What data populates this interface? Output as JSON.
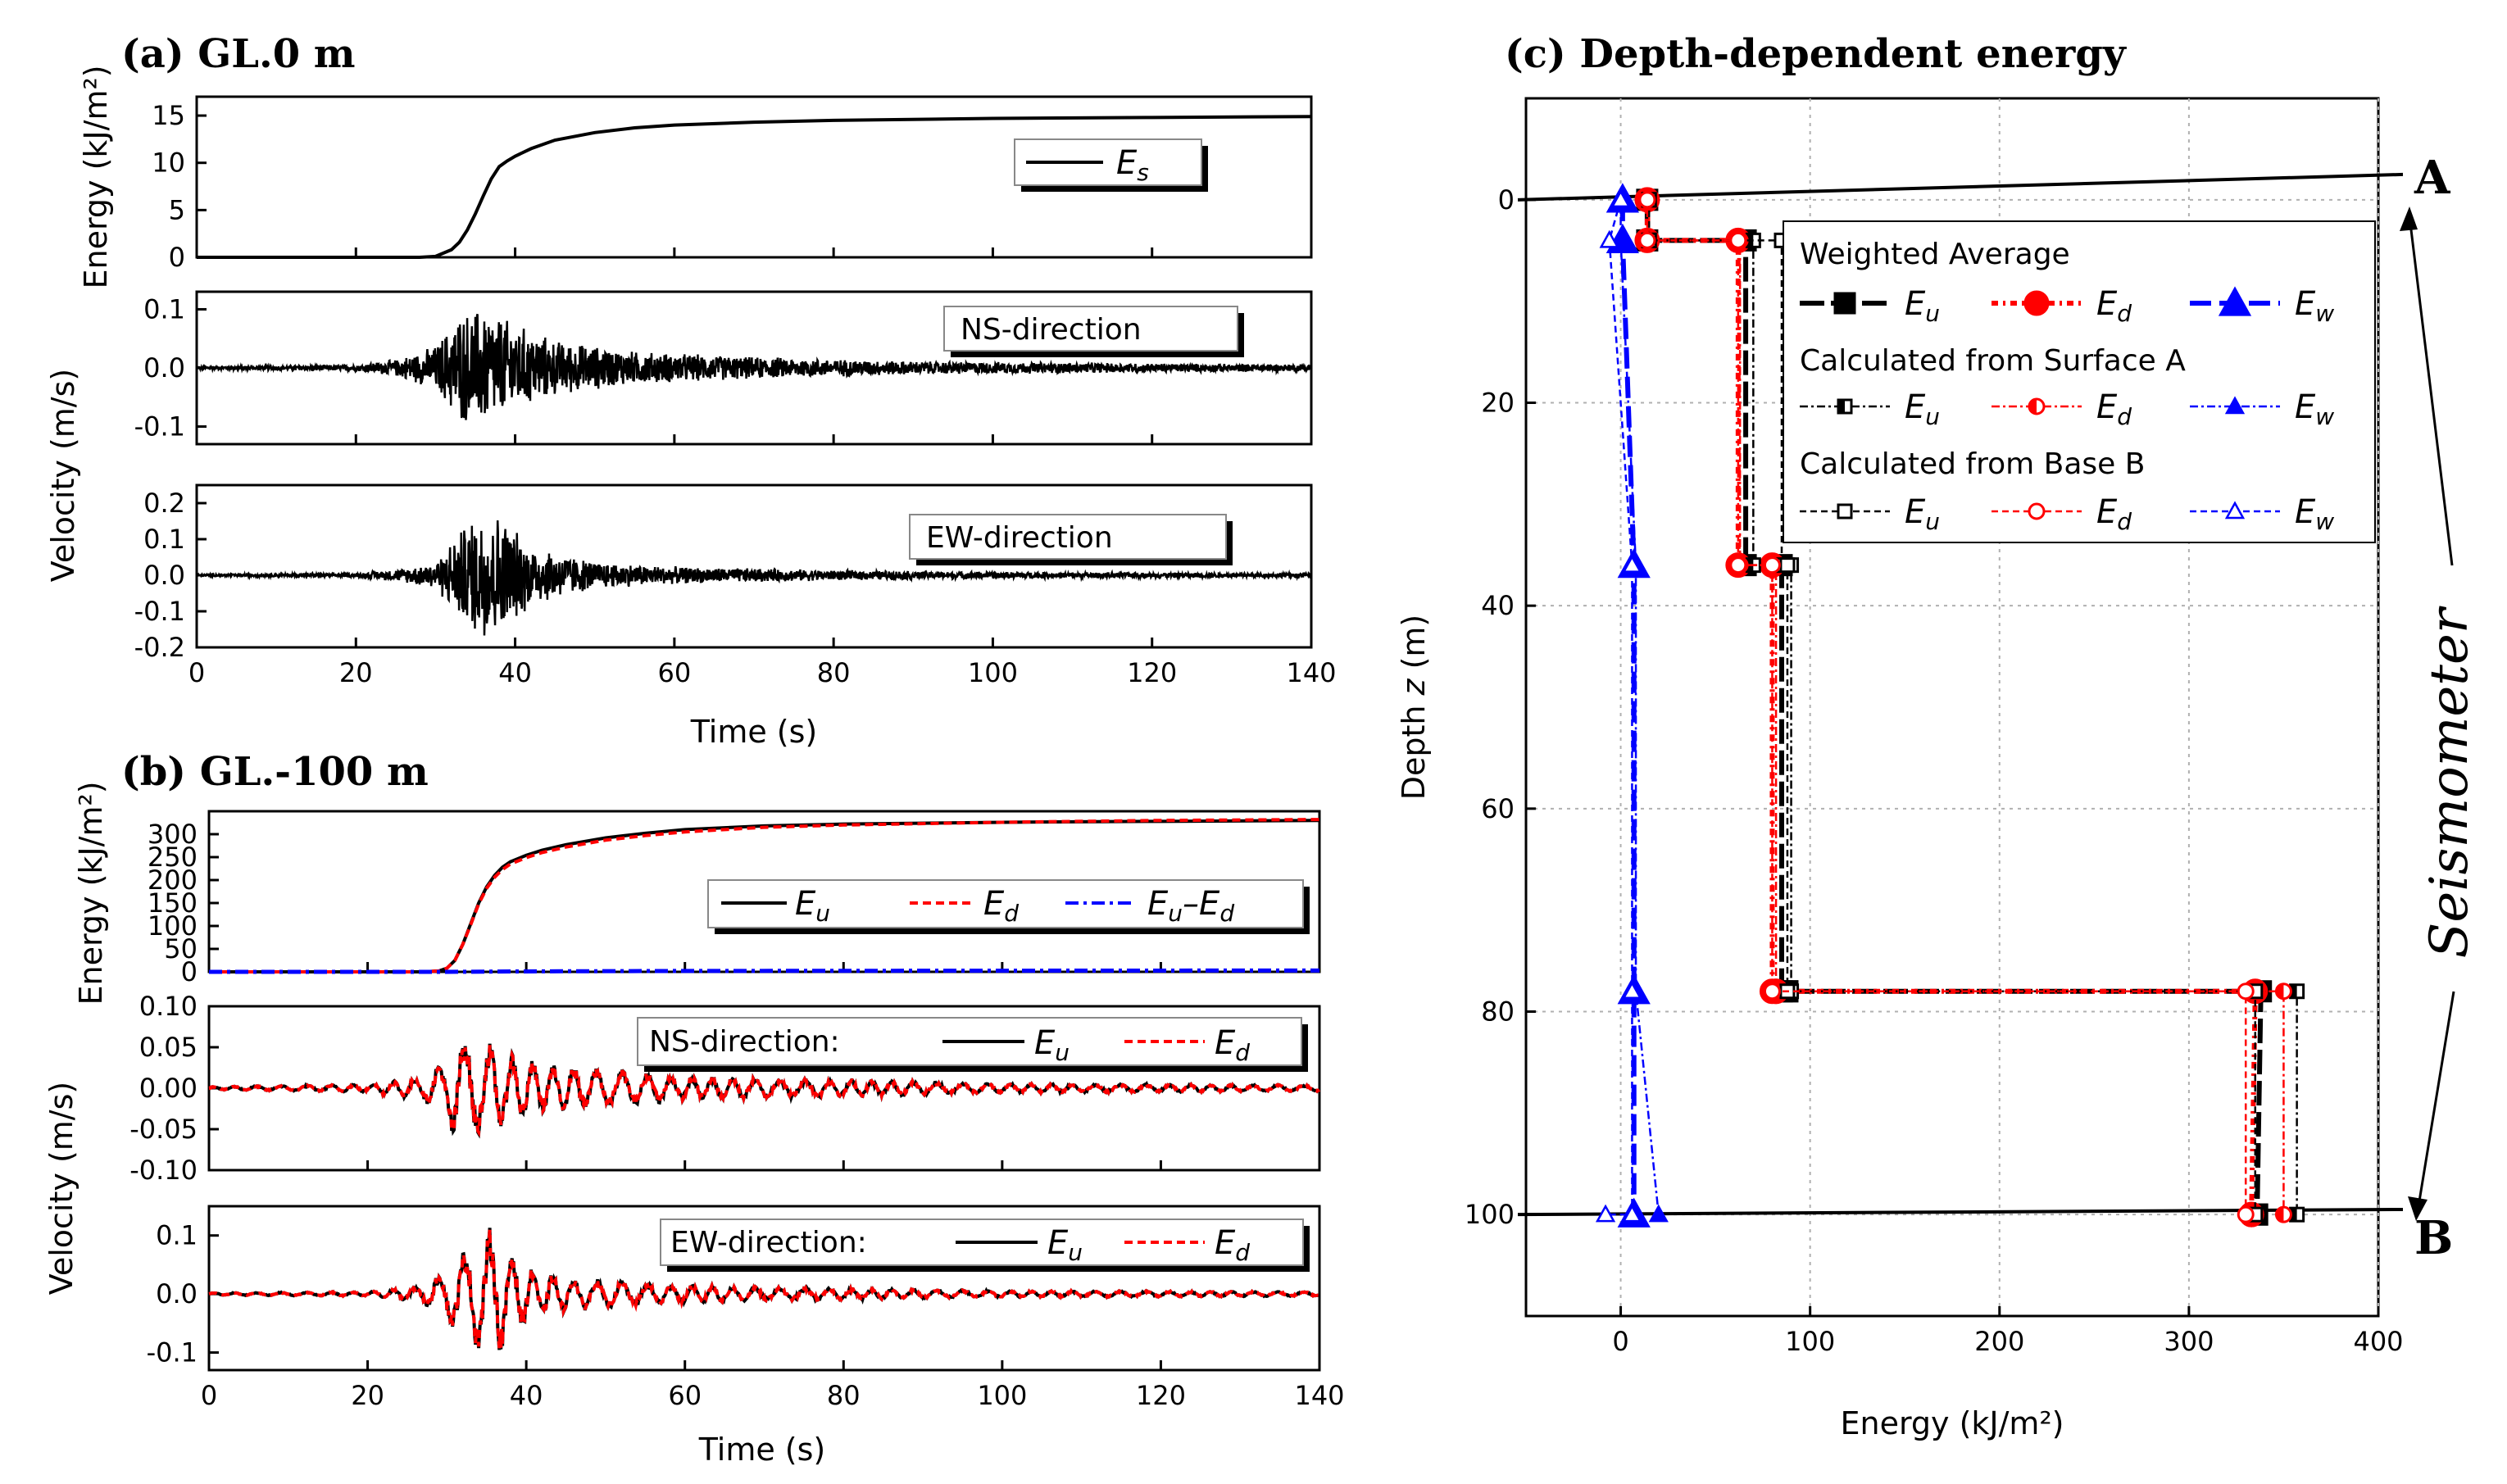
{
  "titles": {
    "a": "(a)  GL.0 m",
    "b": "(b)  GL.-100 m",
    "c": "(c)  Depth-dependent energy"
  },
  "panel_a": {
    "energy_ylabel": "Energy (kJ/m²)",
    "velocity_ylabel": "Velocity (m/s)",
    "xlabel": "Time (s)",
    "energy_legend": {
      "sym": "E",
      "sub": "s"
    },
    "ns_label": "NS-direction",
    "ew_label": "EW-direction"
  },
  "panel_b": {
    "energy_ylabel": "Energy (kJ/m²)",
    "velocity_ylabel": "Velocity (m/s)",
    "xlabel": "Time (s)",
    "ns_label": "NS-direction:",
    "ew_label": "EW-direction:",
    "legend_eu": {
      "sym": "E",
      "sub": "u"
    },
    "legend_ed": {
      "sym": "E",
      "sub": "d"
    },
    "legend_diff": {
      "sym1": "E",
      "sub1": "u",
      "minus": "–",
      "sym2": "E",
      "sub2": "d"
    }
  },
  "panel_c": {
    "xlabel": "Energy (kJ/m²)",
    "ylabel_prefix": "Depth ",
    "ylabel_var": "z",
    "ylabel_suffix": " (m)",
    "label_a": "A",
    "label_b": "B",
    "seismometer": "Seismometer",
    "legend": {
      "group1": "Weighted Average",
      "group2": "Calculated from Surface A",
      "group3": "Calculated from Base B",
      "eu": {
        "sym": "E",
        "sub": "u"
      },
      "ed": {
        "sym": "E",
        "sub": "d"
      },
      "ew": {
        "sym": "E",
        "sub": "w"
      }
    }
  },
  "colors": {
    "black": "#000000",
    "red": "#ff0000",
    "blue": "#0000ff",
    "grid": "#b0b0b0"
  },
  "chart_data": [
    {
      "id": "a-energy",
      "type": "line",
      "xlim": [
        0,
        140
      ],
      "ylim": [
        0,
        17
      ],
      "xticks": [
        0,
        20,
        40,
        60,
        80,
        100,
        120,
        140
      ],
      "yticks": [
        0,
        5,
        10,
        15
      ],
      "series": [
        {
          "name": "Es",
          "color": "#000000",
          "x": [
            0,
            28,
            30,
            32,
            33,
            34,
            35,
            36,
            37,
            38,
            39,
            40,
            42,
            45,
            50,
            55,
            60,
            70,
            80,
            100,
            120,
            140
          ],
          "y": [
            0,
            0,
            0.1,
            0.8,
            1.6,
            2.9,
            4.6,
            6.5,
            8.3,
            9.6,
            10.2,
            10.7,
            11.5,
            12.4,
            13.2,
            13.7,
            14.0,
            14.3,
            14.5,
            14.7,
            14.8,
            14.9
          ]
        }
      ]
    },
    {
      "id": "a-ns",
      "type": "line",
      "xlim": [
        0,
        140
      ],
      "ylim": [
        -0.13,
        0.13
      ],
      "xticks": [
        0,
        20,
        40,
        60,
        80,
        100,
        120,
        140
      ],
      "yticks": [
        -0.1,
        0.0,
        0.1
      ],
      "envelope": [
        [
          0,
          0.003
        ],
        [
          20,
          0.006
        ],
        [
          25,
          0.015
        ],
        [
          30,
          0.04
        ],
        [
          33,
          0.1
        ],
        [
          36,
          0.11
        ],
        [
          40,
          0.08
        ],
        [
          45,
          0.05
        ],
        [
          55,
          0.03
        ],
        [
          70,
          0.02
        ],
        [
          90,
          0.012
        ],
        [
          140,
          0.006
        ]
      ],
      "series": [
        {
          "name": "NS",
          "color": "#000000"
        }
      ]
    },
    {
      "id": "a-ew",
      "type": "line",
      "xlim": [
        0,
        140
      ],
      "ylim": [
        -0.2,
        0.25
      ],
      "xticks": [
        0,
        20,
        40,
        60,
        80,
        100,
        120,
        140
      ],
      "yticks": [
        -0.2,
        -0.1,
        0.0,
        0.1,
        0.2
      ],
      "envelope": [
        [
          0,
          0.003
        ],
        [
          20,
          0.006
        ],
        [
          26,
          0.02
        ],
        [
          30,
          0.04
        ],
        [
          33,
          0.13
        ],
        [
          36,
          0.2
        ],
        [
          38,
          0.18
        ],
        [
          42,
          0.09
        ],
        [
          50,
          0.04
        ],
        [
          60,
          0.025
        ],
        [
          80,
          0.015
        ],
        [
          100,
          0.01
        ],
        [
          140,
          0.006
        ]
      ],
      "series": [
        {
          "name": "EW",
          "color": "#000000"
        }
      ]
    },
    {
      "id": "b-energy",
      "type": "line",
      "xlim": [
        0,
        140
      ],
      "ylim": [
        0,
        350
      ],
      "xticks": [
        0,
        20,
        40,
        60,
        80,
        100,
        120,
        140
      ],
      "yticks": [
        0,
        50,
        100,
        150,
        200,
        250,
        300
      ],
      "series": [
        {
          "name": "Eu",
          "color": "#000000",
          "x": [
            0,
            27,
            29,
            30,
            31,
            32,
            33,
            34,
            35,
            36,
            37,
            38,
            40,
            42,
            45,
            50,
            55,
            60,
            70,
            80,
            100,
            120,
            140
          ],
          "y": [
            0,
            0,
            2,
            8,
            25,
            60,
            105,
            150,
            185,
            210,
            228,
            240,
            254,
            265,
            277,
            292,
            302,
            310,
            318,
            322,
            326,
            328,
            330
          ]
        },
        {
          "name": "Ed",
          "color": "#ff0000",
          "x": [
            0,
            27,
            29,
            30,
            31,
            32,
            33,
            34,
            35,
            36,
            37,
            38,
            40,
            42,
            45,
            50,
            55,
            60,
            70,
            80,
            100,
            120,
            140
          ],
          "y": [
            0,
            0,
            2,
            8,
            25,
            60,
            103,
            148,
            182,
            206,
            223,
            235,
            249,
            260,
            272,
            287,
            297,
            305,
            315,
            320,
            326,
            330,
            332
          ]
        },
        {
          "name": "Eu–Ed",
          "color": "#0000ff",
          "x": [
            0,
            30,
            40,
            60,
            100,
            140
          ],
          "y": [
            0,
            0,
            1,
            2,
            2.5,
            3
          ]
        }
      ]
    },
    {
      "id": "b-ns",
      "type": "line",
      "xlim": [
        0,
        140
      ],
      "ylim": [
        -0.1,
        0.1
      ],
      "xticks": [
        0,
        20,
        40,
        60,
        80,
        100,
        120,
        140
      ],
      "yticks": [
        -0.1,
        -0.05,
        0.0,
        0.05,
        0.1
      ],
      "envelope": [
        [
          0,
          0.002
        ],
        [
          20,
          0.005
        ],
        [
          27,
          0.015
        ],
        [
          30,
          0.04
        ],
        [
          31,
          0.075
        ],
        [
          34,
          0.06
        ],
        [
          37,
          0.05
        ],
        [
          42,
          0.03
        ],
        [
          50,
          0.025
        ],
        [
          60,
          0.015
        ],
        [
          75,
          0.012
        ],
        [
          100,
          0.006
        ],
        [
          140,
          0.004
        ]
      ],
      "series": [
        {
          "name": "Eu",
          "color": "#000000"
        },
        {
          "name": "Ed",
          "color": "#ff0000"
        }
      ]
    },
    {
      "id": "b-ew",
      "type": "line",
      "xlim": [
        0,
        140
      ],
      "ylim": [
        -0.13,
        0.15
      ],
      "xticks": [
        0,
        20,
        40,
        60,
        80,
        100,
        120,
        140
      ],
      "yticks": [
        -0.1,
        0.0,
        0.1
      ],
      "envelope": [
        [
          0,
          0.002
        ],
        [
          20,
          0.004
        ],
        [
          27,
          0.015
        ],
        [
          30,
          0.05
        ],
        [
          33,
          0.09
        ],
        [
          36,
          0.12
        ],
        [
          40,
          0.05
        ],
        [
          45,
          0.03
        ],
        [
          55,
          0.02
        ],
        [
          70,
          0.012
        ],
        [
          100,
          0.006
        ],
        [
          140,
          0.004
        ]
      ],
      "series": [
        {
          "name": "Eu",
          "color": "#000000"
        },
        {
          "name": "Ed",
          "color": "#ff0000"
        }
      ]
    },
    {
      "id": "c-depth",
      "type": "line",
      "xlim": [
        -50,
        400
      ],
      "ylim": [
        110,
        -10
      ],
      "xticks": [
        0,
        100,
        200,
        300,
        400
      ],
      "yticks": [
        0,
        20,
        40,
        60,
        80,
        100
      ],
      "series": [
        {
          "group": "Weighted Average",
          "name": "Eu",
          "color": "#000000",
          "marker": "square-filled",
          "x": [
            14,
            14,
            66,
            66,
            85,
            85,
            88,
            88,
            338,
            336,
            336
          ],
          "y": [
            0,
            4,
            4,
            36,
            36,
            78,
            78,
            78,
            78,
            100,
            100
          ]
        },
        {
          "group": "Weighted Average",
          "name": "Ed",
          "color": "#ff0000",
          "marker": "circle-filled",
          "x": [
            14,
            14,
            62,
            62,
            80,
            80,
            82,
            82,
            335,
            333,
            333
          ],
          "y": [
            0,
            4,
            4,
            36,
            36,
            78,
            78,
            78,
            78,
            100,
            100
          ]
        },
        {
          "group": "Weighted Average",
          "name": "Ew",
          "color": "#0000ff",
          "marker": "triangle-filled",
          "x": [
            1,
            1,
            7,
            7,
            7
          ],
          "y": [
            0,
            4,
            36,
            78,
            100
          ]
        },
        {
          "group": "Calculated from Surface A",
          "name": "Eu",
          "color": "#000000",
          "marker": "square-half",
          "x": [
            15,
            15,
            70,
            70,
            90,
            90,
            357,
            357
          ],
          "y": [
            0,
            4,
            4,
            36,
            36,
            78,
            78,
            100
          ]
        },
        {
          "group": "Calculated from Surface A",
          "name": "Ed",
          "color": "#ff0000",
          "marker": "circle-half",
          "x": [
            15,
            15,
            63,
            63,
            82,
            82,
            350,
            350
          ],
          "y": [
            0,
            4,
            4,
            36,
            36,
            78,
            78,
            100
          ]
        },
        {
          "group": "Calculated from Surface A",
          "name": "Ew",
          "color": "#0000ff",
          "marker": "triangle-small",
          "x": [
            0,
            0,
            8,
            8,
            20
          ],
          "y": [
            0,
            4,
            36,
            78,
            100
          ]
        },
        {
          "group": "Calculated from Base B",
          "name": "Eu",
          "color": "#000000",
          "marker": "square-open",
          "x": [
            15,
            15,
            85,
            85,
            88,
            88,
            335,
            335
          ],
          "y": [
            0,
            4,
            4,
            36,
            36,
            78,
            78,
            100
          ]
        },
        {
          "group": "Calculated from Base B",
          "name": "Ed",
          "color": "#ff0000",
          "marker": "circle-open",
          "x": [
            14,
            14,
            62,
            62,
            80,
            80,
            330,
            330
          ],
          "y": [
            0,
            4,
            4,
            36,
            36,
            78,
            78,
            100
          ]
        },
        {
          "group": "Calculated from Base B",
          "name": "Ew",
          "color": "#0000ff",
          "marker": "triangle-open",
          "x": [
            0,
            -6,
            6,
            6,
            6,
            -8
          ],
          "y": [
            0,
            4,
            36,
            78,
            100,
            100
          ]
        }
      ]
    }
  ]
}
